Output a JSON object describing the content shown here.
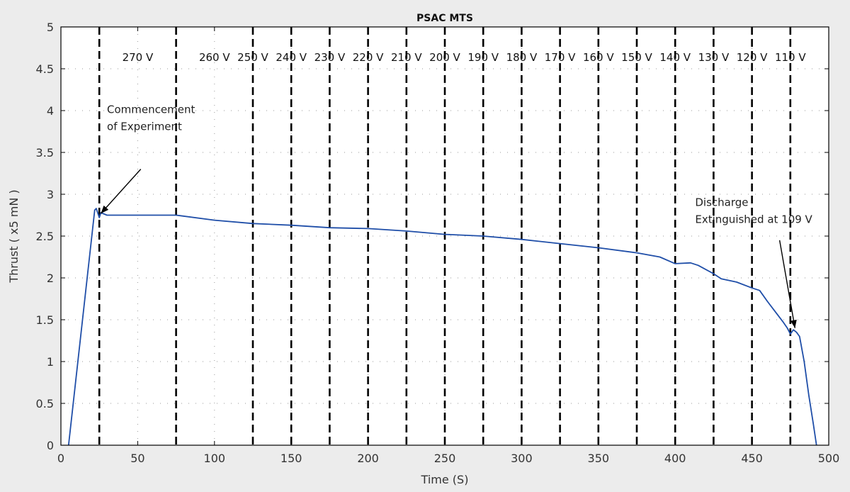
{
  "chart_data": {
    "type": "line",
    "title": "PSAC MTS",
    "xlabel": "Time (S)",
    "ylabel": "Thrust ( x5 mN )",
    "xlim": [
      0,
      500
    ],
    "ylim": [
      0,
      5
    ],
    "xticks": [
      0,
      50,
      100,
      150,
      200,
      250,
      300,
      350,
      400,
      450,
      500
    ],
    "yticks": [
      0,
      0.5,
      1,
      1.5,
      2,
      2.5,
      3,
      3.5,
      4,
      4.5,
      5
    ],
    "grid": "dotted",
    "line_color": "#1f4ea8",
    "dividers": [
      25,
      75,
      125,
      150,
      175,
      200,
      225,
      250,
      275,
      300,
      325,
      350,
      375,
      400,
      425,
      450,
      475
    ],
    "voltage_bands": [
      {
        "label": "270 V",
        "x": 50
      },
      {
        "label": "260 V",
        "x": 100
      },
      {
        "label": "250 V",
        "x": 125
      },
      {
        "label": "240 V",
        "x": 150
      },
      {
        "label": "230 V",
        "x": 175
      },
      {
        "label": "220 V",
        "x": 200
      },
      {
        "label": "210 V",
        "x": 225
      },
      {
        "label": "200 V",
        "x": 250
      },
      {
        "label": "190 V",
        "x": 275
      },
      {
        "label": "180 V",
        "x": 300
      },
      {
        "label": "170 V",
        "x": 325
      },
      {
        "label": "160 V",
        "x": 350
      },
      {
        "label": "150 V",
        "x": 375
      },
      {
        "label": "140 V",
        "x": 400
      },
      {
        "label": "130 V",
        "x": 425
      },
      {
        "label": "120 V",
        "x": 450
      },
      {
        "label": "110 V",
        "x": 475
      }
    ],
    "series": [
      {
        "x": [
          5,
          22,
          23,
          25,
          26,
          30,
          50,
          75,
          100,
          125,
          150,
          175,
          200,
          225,
          250,
          275,
          300,
          325,
          350,
          375,
          390,
          400,
          410,
          415,
          425,
          430,
          440,
          450,
          455,
          460,
          465,
          470,
          473,
          475,
          477,
          479,
          481,
          484,
          487,
          490,
          492
        ],
        "y": [
          0,
          2.81,
          2.83,
          2.72,
          2.78,
          2.75,
          2.75,
          2.75,
          2.69,
          2.65,
          2.63,
          2.6,
          2.59,
          2.56,
          2.52,
          2.5,
          2.46,
          2.41,
          2.36,
          2.3,
          2.25,
          2.17,
          2.18,
          2.15,
          2.05,
          1.99,
          1.95,
          1.88,
          1.85,
          1.72,
          1.6,
          1.48,
          1.4,
          1.33,
          1.38,
          1.35,
          1.3,
          1.0,
          0.6,
          0.25,
          0
        ]
      }
    ],
    "annotations": [
      {
        "lines": [
          "Commencement",
          "of Experiment"
        ],
        "text_x": 30,
        "text_y": 3.97,
        "arrow_from": [
          52,
          3.3
        ],
        "arrow_to": [
          26,
          2.77
        ]
      },
      {
        "lines": [
          "Discharge",
          "Extinguished at 109 V"
        ],
        "text_x": 413,
        "text_y": 2.86,
        "arrow_from": [
          468,
          2.45
        ],
        "arrow_to": [
          478,
          1.4
        ]
      }
    ]
  }
}
